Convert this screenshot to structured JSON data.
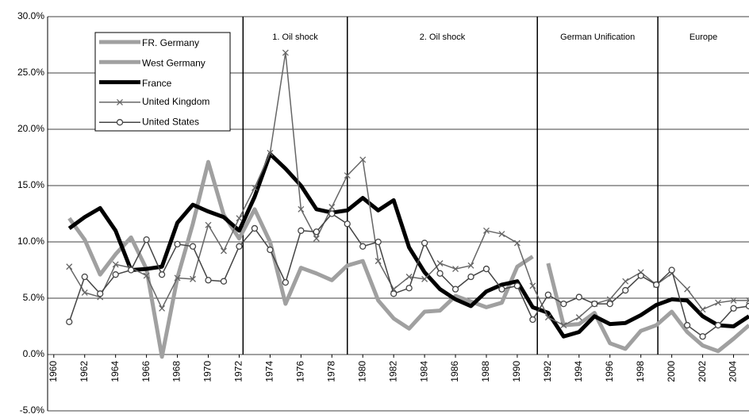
{
  "chart_data": {
    "type": "line",
    "xlim": [
      1959.6,
      2005
    ],
    "xticks": [
      1960,
      1962,
      1964,
      1966,
      1968,
      1970,
      1972,
      1974,
      1976,
      1978,
      1980,
      1982,
      1984,
      1986,
      1988,
      1990,
      1992,
      1994,
      1996,
      1998,
      2000,
      2002,
      2004
    ],
    "ylim": [
      -5,
      30
    ],
    "yticks": [
      {
        "value": -5,
        "label": "-5.0%"
      },
      {
        "value": 0,
        "label": "0.0%"
      },
      {
        "value": 5,
        "label": "5.0%"
      },
      {
        "value": 10,
        "label": "10.0%"
      },
      {
        "value": 15,
        "label": "15.0%"
      },
      {
        "value": 20,
        "label": "20.0%"
      },
      {
        "value": 25,
        "label": "25.0%"
      },
      {
        "value": 30,
        "label": "30.0%"
      }
    ],
    "grid": true,
    "periods": [
      {
        "label": "1. Oil shock",
        "start": 1972.25
      },
      {
        "label": "2. Oil shock",
        "start": 1979.0
      },
      {
        "label": "German Unification",
        "start": 1991.3
      },
      {
        "label": "Europe",
        "start": 1999.1
      }
    ],
    "series": [
      {
        "name": "FR. Germany",
        "color": "#a0a0a0",
        "marker": null,
        "x": [
          1961,
          1962,
          1963,
          1964,
          1965,
          1966,
          1967,
          1968,
          1969,
          1970,
          1971,
          1972,
          1973,
          1974,
          1975,
          1976,
          1977,
          1978,
          1979,
          1980,
          1981,
          1982,
          1983,
          1984,
          1985,
          1986,
          1987,
          1988,
          1989,
          1990,
          1991
        ],
        "values": [
          12.1,
          10.2,
          7.1,
          8.9,
          10.4,
          7.6,
          -0.2,
          6.8,
          11.6,
          17.1,
          12.4,
          10.3,
          12.9,
          10.0,
          4.5,
          7.7,
          7.2,
          6.6,
          7.9,
          8.3,
          4.8,
          3.2,
          2.3,
          3.8,
          3.9,
          5.2,
          4.7,
          4.2,
          4.6,
          7.8,
          8.7
        ]
      },
      {
        "name": "West Germany",
        "color": "#a0a0a0",
        "marker": null,
        "x": [
          1992,
          1993,
          1994,
          1995,
          1996,
          1997,
          1998,
          1999,
          2000,
          2001,
          2002,
          2003,
          2004,
          2005
        ],
        "values": [
          8.1,
          2.6,
          2.7,
          3.7,
          1.0,
          0.5,
          2.1,
          2.6,
          3.8,
          2.0,
          0.8,
          0.3,
          1.4,
          2.6
        ]
      },
      {
        "name": "France",
        "color": "#000000",
        "marker": null,
        "x": [
          1961,
          1962,
          1963,
          1964,
          1965,
          1966,
          1967,
          1968,
          1969,
          1970,
          1971,
          1972,
          1973,
          1974,
          1975,
          1976,
          1977,
          1978,
          1979,
          1980,
          1981,
          1982,
          1983,
          1984,
          1985,
          1986,
          1987,
          1988,
          1989,
          1990,
          1991,
          1992,
          1993,
          1994,
          1995,
          1996,
          1997,
          1998,
          1999,
          2000,
          2001,
          2002,
          2003,
          2004,
          2005
        ],
        "values": [
          11.2,
          12.2,
          13.0,
          11.0,
          7.5,
          7.6,
          7.8,
          11.7,
          13.3,
          12.7,
          12.2,
          11.0,
          14.0,
          17.8,
          16.5,
          15.0,
          12.9,
          12.6,
          12.8,
          13.9,
          12.8,
          13.7,
          9.5,
          7.3,
          5.8,
          4.9,
          4.3,
          5.6,
          6.2,
          6.5,
          4.2,
          3.7,
          1.6,
          2.0,
          3.4,
          2.7,
          2.8,
          3.5,
          4.4,
          4.9,
          4.8,
          3.4,
          2.6,
          2.5,
          3.4
        ]
      },
      {
        "name": "United Kingdom",
        "color": "#666666",
        "marker": "x",
        "x": [
          1961,
          1962,
          1963,
          1964,
          1965,
          1966,
          1967,
          1968,
          1969,
          1970,
          1971,
          1972,
          1973,
          1974,
          1975,
          1976,
          1977,
          1978,
          1979,
          1980,
          1981,
          1982,
          1983,
          1984,
          1985,
          1986,
          1987,
          1988,
          1989,
          1990,
          1991,
          1992,
          1993,
          1994,
          1995,
          1996,
          1997,
          1998,
          1999,
          2000,
          2001,
          2002,
          2003,
          2004,
          2005
        ],
        "values": [
          7.8,
          5.5,
          5.1,
          8.0,
          7.7,
          7.0,
          4.1,
          6.8,
          6.7,
          11.5,
          9.2,
          12.1,
          14.8,
          17.9,
          26.8,
          12.9,
          10.3,
          13.1,
          15.9,
          17.3,
          8.3,
          5.8,
          6.9,
          6.7,
          8.1,
          7.6,
          7.9,
          11.0,
          10.7,
          9.9,
          6.1,
          3.3,
          2.6,
          3.3,
          4.5,
          4.9,
          6.5,
          7.3,
          6.2,
          7.2,
          5.8,
          4.0,
          4.6,
          4.8,
          4.8
        ]
      },
      {
        "name": "United States",
        "color": "#444444",
        "marker": "circle",
        "x": [
          1961,
          1962,
          1963,
          1964,
          1965,
          1966,
          1967,
          1968,
          1969,
          1970,
          1971,
          1972,
          1973,
          1974,
          1975,
          1976,
          1977,
          1978,
          1979,
          1980,
          1981,
          1982,
          1983,
          1984,
          1985,
          1986,
          1987,
          1988,
          1989,
          1990,
          1991,
          1992,
          1993,
          1994,
          1995,
          1996,
          1997,
          1998,
          1999,
          2000,
          2001,
          2002,
          2003,
          2004,
          2005
        ],
        "values": [
          2.9,
          6.9,
          5.4,
          7.1,
          7.5,
          10.2,
          7.1,
          9.8,
          9.6,
          6.6,
          6.5,
          9.6,
          11.2,
          9.3,
          6.4,
          11.0,
          10.9,
          12.5,
          11.6,
          9.6,
          10.0,
          5.4,
          5.9,
          9.9,
          7.2,
          5.8,
          6.9,
          7.6,
          5.8,
          6.1,
          3.1,
          5.3,
          4.5,
          5.1,
          4.5,
          4.5,
          5.7,
          7.0,
          6.2,
          7.5,
          2.6,
          1.6,
          2.6,
          4.1,
          4.3
        ]
      }
    ]
  }
}
